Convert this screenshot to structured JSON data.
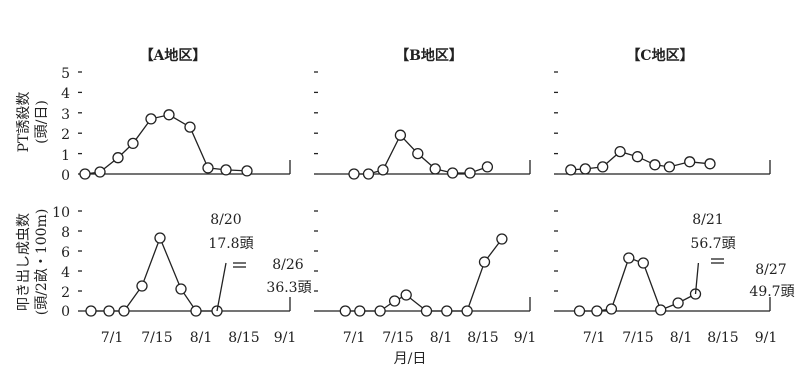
{
  "chart_data": {
    "type": "line",
    "xlabel": "月/日",
    "x_ticks": [
      "7/1",
      "7/15",
      "8/1",
      "8/15",
      "9/1"
    ],
    "regions": [
      "【A地区】",
      "【B地区】",
      "【C地区】"
    ],
    "top_ylabel": "PT誘殺数\n(頭/日)",
    "bottom_ylabel": "叩き出し成虫数\n(頭/2畝・100m)",
    "top_yticks": [
      "5",
      "4",
      "3",
      "2",
      "1",
      "0"
    ],
    "bottom_yticks": [
      "10",
      "8",
      "6",
      "4",
      "2",
      "0"
    ],
    "top_ylim": [
      0,
      5
    ],
    "bottom_ylim": [
      0,
      10
    ],
    "panels": [
      {
        "region": "【A地区】",
        "row": "top",
        "series": [
          {
            "x": [
              "6/22",
              "6/27",
              "7/3",
              "7/8",
              "7/14",
              "7/20",
              "7/27",
              "8/2",
              "8/8",
              "8/15"
            ],
            "y": [
              0,
              0.1,
              0.8,
              1.5,
              2.7,
              2.9,
              2.3,
              0.3,
              0.2,
              0.15
            ]
          }
        ]
      },
      {
        "region": "【B地区】",
        "row": "top",
        "series": [
          {
            "x": [
              "7/1",
              "7/6",
              "7/11",
              "7/17",
              "7/23",
              "7/29",
              "8/4",
              "8/10",
              "8/16"
            ],
            "y": [
              0,
              0,
              0.2,
              1.9,
              1.0,
              0.25,
              0.05,
              0.05,
              0.35
            ]
          }
        ]
      },
      {
        "region": "【C地区】",
        "row": "top",
        "series": [
          {
            "x": [
              "6/23",
              "6/28",
              "7/4",
              "7/10",
              "7/16",
              "7/22",
              "7/27",
              "8/3",
              "8/10"
            ],
            "y": [
              0.2,
              0.25,
              0.35,
              1.1,
              0.85,
              0.45,
              0.35,
              0.6,
              0.5
            ]
          }
        ]
      },
      {
        "region": "【A地区】",
        "row": "bottom",
        "series": [
          {
            "x": [
              "6/24",
              "6/30",
              "7/5",
              "7/11",
              "7/17",
              "7/24",
              "7/29",
              "8/5"
            ],
            "y": [
              0,
              0,
              0,
              2.5,
              7.3,
              2.2,
              0,
              0
            ]
          },
          {
            "x": [
              "8/5",
              "8/8"
            ],
            "y": [
              0,
              4.8
            ]
          }
        ],
        "annotations": [
          {
            "text": "8/20"
          },
          {
            "text": "17.8頭"
          },
          {
            "text": "8/26"
          },
          {
            "text": "36.3頭"
          }
        ]
      },
      {
        "region": "【B地区】",
        "row": "bottom",
        "series": [
          {
            "x": [
              "6/28",
              "7/3",
              "7/10",
              "7/15",
              "7/19",
              "7/26",
              "8/2",
              "8/9",
              "8/15",
              "8/21"
            ],
            "y": [
              0,
              0,
              0,
              1.0,
              1.6,
              0,
              0,
              0,
              4.9,
              7.2
            ]
          }
        ]
      },
      {
        "region": "【C地区】",
        "row": "bottom",
        "series": [
          {
            "x": [
              "6/26",
              "7/2",
              "7/7",
              "7/13",
              "7/18",
              "7/24",
              "7/30",
              "8/5"
            ],
            "y": [
              0,
              0,
              0.2,
              5.3,
              4.8,
              0.1,
              0.8,
              1.7
            ]
          },
          {
            "x": [
              "8/5",
              "8/6"
            ],
            "y": [
              1.7,
              4.8
            ]
          }
        ],
        "annotations": [
          {
            "text": "8/21"
          },
          {
            "text": "56.7頭"
          },
          {
            "text": "8/27"
          },
          {
            "text": "49.7頭"
          }
        ]
      }
    ]
  }
}
